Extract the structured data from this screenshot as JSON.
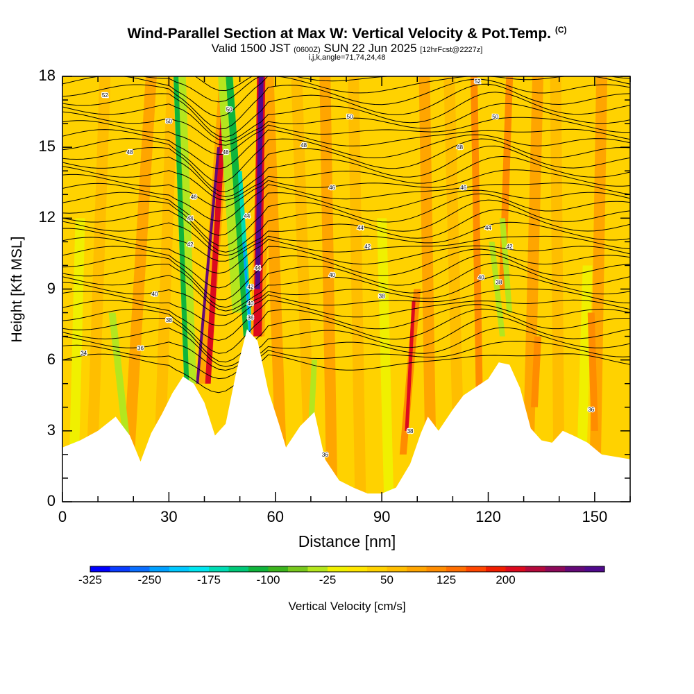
{
  "chart_data": {
    "type": "heatmap",
    "title": "Wind-Parallel Section at Max W: Vertical Velocity & Pot.Temp.",
    "title_mark": "(C)",
    "subtitle_main": "Valid 1500 JST",
    "subtitle_utc": "(0600Z)",
    "subtitle_date": "SUN 22 Jun 2025",
    "subtitle_fcst": "[12hrFcst@2227z]",
    "subtitle2": "i,j,k,angle=71,74,24,48",
    "xlabel": "Distance [nm]",
    "ylabel": "Height [Kft MSL]",
    "xlim": [
      0,
      160
    ],
    "ylim": [
      0,
      18
    ],
    "x_ticks": [
      "0",
      "30",
      "60",
      "90",
      "120",
      "150"
    ],
    "y_ticks": [
      "0",
      "3",
      "6",
      "9",
      "12",
      "15",
      "18"
    ],
    "colorbar": {
      "title": "Vertical Velocity [cm/s]",
      "labels": [
        "-325",
        "-250",
        "-175",
        "-100",
        "-25",
        "50",
        "125",
        "200"
      ],
      "colors": [
        "#0000ff",
        "#0a3cff",
        "#0a6eff",
        "#00a0ff",
        "#00c8ff",
        "#00e6f0",
        "#00dcb4",
        "#00c878",
        "#10b43c",
        "#3cb41e",
        "#78c81e",
        "#b4e61e",
        "#f0f000",
        "#ffe600",
        "#ffd200",
        "#ffbe00",
        "#ffa500",
        "#ff8c00",
        "#ff6e00",
        "#ff4600",
        "#f01e00",
        "#dc0a1e",
        "#b40a3c",
        "#8c0a5a",
        "#640a78",
        "#500a8c"
      ]
    },
    "terrain_height_kft": [
      [
        0,
        2.3
      ],
      [
        5,
        2.6
      ],
      [
        10,
        3.0
      ],
      [
        15,
        3.6
      ],
      [
        19,
        2.8
      ],
      [
        22,
        1.7
      ],
      [
        25,
        2.9
      ],
      [
        28,
        3.7
      ],
      [
        31,
        4.6
      ],
      [
        34,
        5.3
      ],
      [
        37,
        5.0
      ],
      [
        40,
        4.2
      ],
      [
        43,
        2.8
      ],
      [
        46,
        3.3
      ],
      [
        49,
        5.5
      ],
      [
        52,
        7.3
      ],
      [
        55,
        6.8
      ],
      [
        58,
        4.7
      ],
      [
        61,
        3.3
      ],
      [
        63,
        2.3
      ],
      [
        67,
        3.2
      ],
      [
        71,
        3.8
      ],
      [
        74,
        1.8
      ],
      [
        78,
        0.9
      ],
      [
        82,
        0.6
      ],
      [
        86,
        0.35
      ],
      [
        90,
        0.35
      ],
      [
        94,
        0.6
      ],
      [
        98,
        1.6
      ],
      [
        101,
        2.9
      ],
      [
        103,
        3.6
      ],
      [
        106,
        3.0
      ],
      [
        110,
        3.9
      ],
      [
        113,
        4.5
      ],
      [
        116,
        4.8
      ],
      [
        120,
        5.2
      ],
      [
        123,
        5.9
      ],
      [
        126,
        5.8
      ],
      [
        129,
        4.8
      ],
      [
        132,
        3.1
      ],
      [
        135,
        2.6
      ],
      [
        138,
        2.5
      ],
      [
        141,
        3.0
      ],
      [
        144,
        2.8
      ],
      [
        148,
        2.5
      ],
      [
        152,
        2.0
      ],
      [
        156,
        1.9
      ],
      [
        160,
        1.8
      ]
    ],
    "theta_contour_labels": [
      {
        "text": "52",
        "x": 12,
        "y": 17.2
      },
      {
        "text": "50",
        "x": 30,
        "y": 16.1
      },
      {
        "text": "48",
        "x": 19,
        "y": 14.8
      },
      {
        "text": "46",
        "x": 37,
        "y": 12.9
      },
      {
        "text": "44",
        "x": 36,
        "y": 12.0
      },
      {
        "text": "42",
        "x": 36,
        "y": 10.9
      },
      {
        "text": "40",
        "x": 26,
        "y": 8.8
      },
      {
        "text": "38",
        "x": 30,
        "y": 7.7
      },
      {
        "text": "36",
        "x": 22,
        "y": 6.5
      },
      {
        "text": "34",
        "x": 6,
        "y": 6.3
      },
      {
        "text": "50",
        "x": 47,
        "y": 16.6
      },
      {
        "text": "48",
        "x": 46,
        "y": 14.8
      },
      {
        "text": "44",
        "x": 52,
        "y": 12.1
      },
      {
        "text": "44",
        "x": 55,
        "y": 9.9
      },
      {
        "text": "42",
        "x": 53,
        "y": 9.1
      },
      {
        "text": "40",
        "x": 53,
        "y": 8.4
      },
      {
        "text": "36",
        "x": 53,
        "y": 7.8
      },
      {
        "text": "50",
        "x": 81,
        "y": 16.3
      },
      {
        "text": "48",
        "x": 68,
        "y": 15.1
      },
      {
        "text": "46",
        "x": 76,
        "y": 13.3
      },
      {
        "text": "44",
        "x": 84,
        "y": 11.6
      },
      {
        "text": "42",
        "x": 86,
        "y": 10.8
      },
      {
        "text": "40",
        "x": 76,
        "y": 9.6
      },
      {
        "text": "38",
        "x": 90,
        "y": 8.7
      },
      {
        "text": "38",
        "x": 98,
        "y": 3.0
      },
      {
        "text": "36",
        "x": 74,
        "y": 2.0
      },
      {
        "text": "52",
        "x": 117,
        "y": 17.8
      },
      {
        "text": "50",
        "x": 122,
        "y": 16.3
      },
      {
        "text": "48",
        "x": 112,
        "y": 15.0
      },
      {
        "text": "46",
        "x": 113,
        "y": 13.3
      },
      {
        "text": "44",
        "x": 120,
        "y": 11.6
      },
      {
        "text": "42",
        "x": 126,
        "y": 10.8
      },
      {
        "text": "40",
        "x": 118,
        "y": 9.5
      },
      {
        "text": "38",
        "x": 123,
        "y": 9.3
      },
      {
        "text": "36",
        "x": 149,
        "y": 3.9
      }
    ]
  }
}
